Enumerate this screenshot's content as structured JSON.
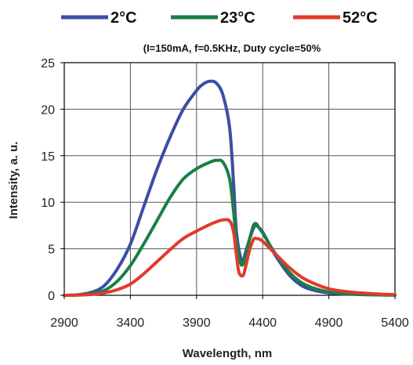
{
  "chart_data": {
    "type": "line",
    "subtitle": "(I=150mA, f=0.5KHz, Duty cycle=50%",
    "xlabel": "Wavelength,  nm",
    "ylabel": "Intensity,  a. u.",
    "xlim": [
      2900,
      5400
    ],
    "ylim": [
      0,
      25
    ],
    "xticks": [
      2900,
      3400,
      3900,
      4400,
      4900,
      5400
    ],
    "yticks": [
      0,
      5,
      10,
      15,
      20,
      25
    ],
    "grid": true,
    "legend_position": "top",
    "series": [
      {
        "name": "2°C",
        "color": "#3a4fa3",
        "x": [
          2900,
          3000,
          3100,
          3200,
          3300,
          3400,
          3500,
          3600,
          3700,
          3800,
          3900,
          3950,
          4000,
          4050,
          4100,
          4150,
          4180,
          4200,
          4230,
          4250,
          4270,
          4300,
          4330,
          4350,
          4370,
          4400,
          4450,
          4500,
          4600,
          4700,
          4800,
          4900,
          5000,
          5100,
          5200,
          5300,
          5400
        ],
        "y": [
          0,
          0.05,
          0.3,
          1.0,
          2.8,
          5.5,
          9.5,
          13.5,
          17.0,
          20.0,
          22.0,
          22.7,
          23.0,
          22.8,
          21.5,
          18.0,
          12.0,
          7.0,
          4.2,
          3.7,
          4.6,
          6.0,
          7.2,
          7.5,
          7.3,
          6.8,
          5.5,
          4.2,
          2.2,
          1.0,
          0.5,
          0.25,
          0.15,
          0.1,
          0.06,
          0.03,
          0.02
        ]
      },
      {
        "name": "23°C",
        "color": "#1a7f45",
        "x": [
          2900,
          3000,
          3100,
          3200,
          3300,
          3400,
          3500,
          3600,
          3700,
          3800,
          3900,
          4000,
          4050,
          4100,
          4150,
          4180,
          4200,
          4230,
          4250,
          4270,
          4300,
          4330,
          4350,
          4370,
          4400,
          4450,
          4500,
          4600,
          4700,
          4800,
          4900,
          5000,
          5100,
          5200,
          5300,
          5400
        ],
        "y": [
          0,
          0.03,
          0.15,
          0.5,
          1.5,
          3.2,
          5.5,
          8.0,
          10.5,
          12.5,
          13.6,
          14.3,
          14.5,
          14.3,
          12.5,
          9.0,
          6.0,
          3.6,
          3.3,
          4.2,
          6.0,
          7.5,
          7.7,
          7.3,
          6.7,
          5.5,
          4.4,
          2.5,
          1.3,
          0.7,
          0.35,
          0.2,
          0.12,
          0.07,
          0.04,
          0.02
        ]
      },
      {
        "name": "52°C",
        "color": "#e23a2a",
        "x": [
          2900,
          3000,
          3100,
          3200,
          3300,
          3400,
          3500,
          3600,
          3700,
          3800,
          3900,
          4000,
          4050,
          4100,
          4150,
          4180,
          4200,
          4220,
          4250,
          4270,
          4300,
          4330,
          4350,
          4380,
          4400,
          4450,
          4500,
          4600,
          4700,
          4800,
          4900,
          5000,
          5100,
          5200,
          5300,
          5400
        ],
        "y": [
          0,
          0.02,
          0.08,
          0.25,
          0.6,
          1.2,
          2.3,
          3.6,
          4.9,
          6.1,
          6.9,
          7.6,
          7.9,
          8.1,
          8.0,
          6.8,
          4.5,
          2.5,
          2.1,
          3.0,
          4.8,
          6.0,
          6.1,
          6.0,
          5.8,
          5.1,
          4.4,
          3.0,
          1.9,
          1.2,
          0.7,
          0.45,
          0.3,
          0.2,
          0.12,
          0.08
        ]
      }
    ]
  }
}
